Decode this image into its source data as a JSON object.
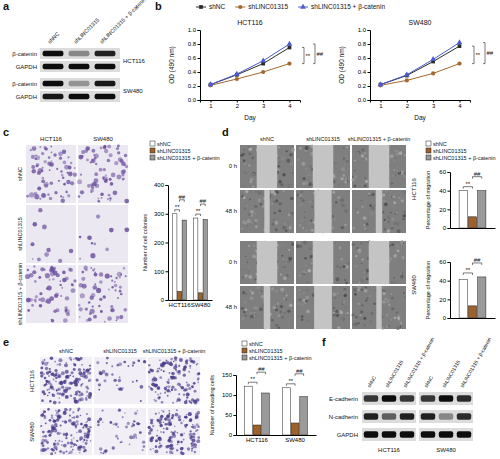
{
  "panel_labels": [
    "a",
    "b",
    "c",
    "d",
    "e",
    "f"
  ],
  "blot_a": {
    "lanes": [
      "shNC",
      "shLINC01315",
      "shLINC01315 + β-catenin"
    ],
    "proteins": [
      "β-catenin",
      "GAPDH"
    ],
    "cell_lines": [
      "HCT116",
      "SW480"
    ]
  },
  "images_c": {
    "columns": [
      "HCT116",
      "SW480"
    ],
    "rows": [
      "shNC",
      "shLINC01315",
      "shLINC01315 + β-catenin"
    ]
  },
  "images_d": {
    "columns": [
      "shNC",
      "shLINC01315",
      "shLINC01315 + β-catenin"
    ],
    "rows": [
      "0 h",
      "48 h",
      "0 h",
      "48 h"
    ]
  },
  "images_e": {
    "columns": [
      "shNC",
      "shLINC01315",
      "shLINC01315 + β-catenin"
    ],
    "rows": [
      "HCT116",
      "SW480"
    ]
  },
  "blot_f": {
    "lanes": [
      "shNC",
      "shLINC01315",
      "shLINC01315 + β-catenin"
    ],
    "proteins": [
      "E-cadherin",
      "N-cadherin",
      "GAPDH"
    ],
    "cell_lines": [
      "HCT116",
      "SW480"
    ]
  },
  "chart_data": [
    {
      "type": "line",
      "title": "HCT116",
      "x_label": "Day",
      "y_label": "OD (490 nm)",
      "x": [
        1,
        2,
        3,
        4
      ],
      "xlim": [
        0.6,
        4.4
      ],
      "xticks": [
        1,
        2,
        3,
        4
      ],
      "ylim": [
        0,
        1
      ],
      "yticks": [
        {
          "value": 0,
          "label": "0.0"
        },
        {
          "value": 0.2,
          "label": "0.2"
        },
        {
          "value": 0.4,
          "label": "0.4"
        },
        {
          "value": 0.6,
          "label": "0.6"
        },
        {
          "value": 0.8,
          "label": "0.8"
        },
        {
          "value": 1,
          "label": "1.0"
        }
      ],
      "legend": "top",
      "annotations": [
        "**",
        "##"
      ],
      "series": [
        {
          "name": "shNC",
          "color": "#2b2b2b",
          "marker": "square",
          "values": [
            0.22,
            0.36,
            0.52,
            0.75
          ]
        },
        {
          "name": "shLINC01315",
          "color": "#a5682f",
          "marker": "circle",
          "values": [
            0.21,
            0.3,
            0.4,
            0.52
          ]
        },
        {
          "name": "shLINC01315 + β-catenin",
          "color": "#4a5ad3",
          "marker": "triangle",
          "values": [
            0.22,
            0.37,
            0.56,
            0.8
          ]
        }
      ]
    },
    {
      "type": "line",
      "title": "SW480",
      "x_label": "Day",
      "y_label": "OD (490 nm)",
      "x": [
        1,
        2,
        3,
        4
      ],
      "xlim": [
        0.6,
        4.4
      ],
      "xticks": [
        1,
        2,
        3,
        4
      ],
      "ylim": [
        0,
        1
      ],
      "yticks": [
        {
          "value": 0,
          "label": "0.0"
        },
        {
          "value": 0.2,
          "label": "0.2"
        },
        {
          "value": 0.4,
          "label": "0.4"
        },
        {
          "value": 0.6,
          "label": "0.6"
        },
        {
          "value": 0.8,
          "label": "0.8"
        },
        {
          "value": 1,
          "label": "1.0"
        }
      ],
      "annotations": [
        "**",
        "##"
      ],
      "series": [
        {
          "color": "#2b2b2b",
          "marker": "square",
          "values": [
            0.22,
            0.35,
            0.55,
            0.77
          ]
        },
        {
          "color": "#a5682f",
          "marker": "circle",
          "values": [
            0.21,
            0.28,
            0.38,
            0.52
          ]
        },
        {
          "color": "#4a5ad3",
          "marker": "triangle",
          "values": [
            0.22,
            0.36,
            0.58,
            0.82
          ]
        }
      ]
    },
    {
      "type": "bar",
      "y_label": "Number of cell colonies",
      "categories": [
        "HCT116",
        "SW480"
      ],
      "ylim": [
        0,
        400
      ],
      "yticks": [
        0,
        100,
        200,
        300,
        400
      ],
      "legend": "top",
      "annotations": [
        "**",
        "##"
      ],
      "series": [
        {
          "name": "shNC",
          "color": "#ffffff",
          "values": [
            300,
            285
          ]
        },
        {
          "name": "shLINC01315",
          "color": "#a0602a",
          "values": [
            30,
            25
          ]
        },
        {
          "name": "shLINC01315 + β-catenin",
          "color": "#9a9a9a",
          "values": [
            278,
            280
          ]
        }
      ]
    },
    {
      "type": "bar",
      "title": "HCT116",
      "y_label": "Percentage of migration",
      "categories": [
        null
      ],
      "ylim": [
        0,
        60
      ],
      "yticks": [
        0,
        20,
        40,
        60
      ],
      "legend": "top",
      "annotations": [
        "**",
        "##"
      ],
      "series": [
        {
          "name": "shNC",
          "color": "#ffffff",
          "values": [
            40
          ]
        },
        {
          "name": "shLINC01315",
          "color": "#a0602a",
          "values": [
            12
          ]
        },
        {
          "name": "shLINC01315 + β-catenin",
          "color": "#9a9a9a",
          "values": [
            40
          ]
        }
      ]
    },
    {
      "type": "bar",
      "title": "SW480",
      "y_label": "Percentage of migration",
      "categories": [
        null
      ],
      "ylim": [
        0,
        60
      ],
      "yticks": [
        0,
        20,
        40,
        60
      ],
      "annotations": [
        "**",
        "##"
      ],
      "series": [
        {
          "color": "#ffffff",
          "values": [
            41
          ]
        },
        {
          "color": "#a0602a",
          "values": [
            13
          ]
        },
        {
          "color": "#9a9a9a",
          "values": [
            44
          ]
        }
      ]
    },
    {
      "type": "bar",
      "y_label": "Number of invading cells",
      "categories": [
        "HCT116",
        "SW480"
      ],
      "ylim": [
        0,
        150
      ],
      "yticks": [
        0,
        50,
        100,
        150
      ],
      "legend": "top",
      "annotations": [
        "**",
        "##"
      ],
      "series": [
        {
          "name": "shNC",
          "color": "#ffffff",
          "values": [
            122,
            118
          ]
        },
        {
          "name": "shLINC01315",
          "color": "#a0602a",
          "values": [
            25,
            30
          ]
        },
        {
          "name": "shLINC01315 + β-catenin",
          "color": "#9a9a9a",
          "values": [
            105,
            96
          ]
        }
      ]
    }
  ]
}
